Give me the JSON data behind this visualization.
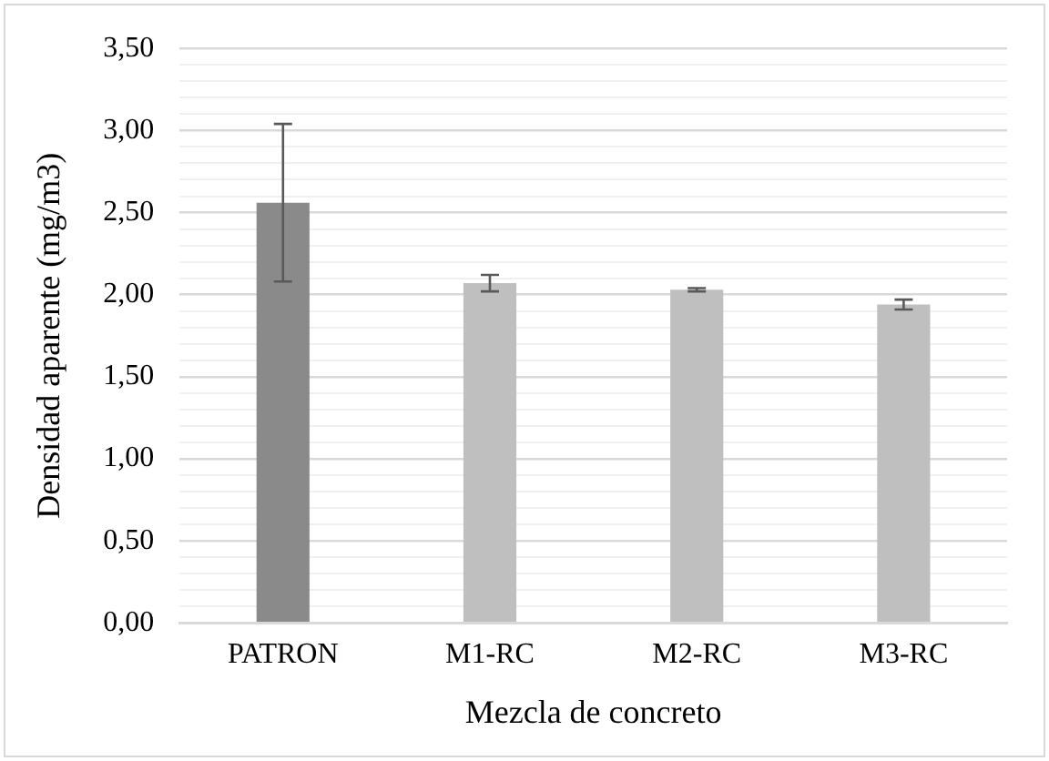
{
  "chart_data": {
    "type": "bar",
    "xlabel": "Mezcla de concreto",
    "ylabel": "Densidad aparente (mg/m3)",
    "categories": [
      "PATRON",
      "M1-RC",
      "M2-RC",
      "M3-RC"
    ],
    "values": [
      2.56,
      2.07,
      2.03,
      1.94
    ],
    "colors": [
      "#8a8a8a",
      "#bfbfbf",
      "#bfbfbf",
      "#bfbfbf"
    ],
    "errors": [
      0.48,
      0.05,
      0.01,
      0.03
    ],
    "ylim": [
      0,
      3.5
    ],
    "yticks": [
      {
        "value": 0,
        "label": "0,00"
      },
      {
        "value": 0.1,
        "label": null
      },
      {
        "value": 0.2,
        "label": null
      },
      {
        "value": 0.3,
        "label": null
      },
      {
        "value": 0.4,
        "label": null
      },
      {
        "value": 0.5,
        "label": "0,50"
      },
      {
        "value": 0.6,
        "label": null
      },
      {
        "value": 0.7,
        "label": null
      },
      {
        "value": 0.8,
        "label": null
      },
      {
        "value": 0.9,
        "label": null
      },
      {
        "value": 1,
        "label": "1,00"
      },
      {
        "value": 1.1,
        "label": null
      },
      {
        "value": 1.2,
        "label": null
      },
      {
        "value": 1.3,
        "label": null
      },
      {
        "value": 1.4,
        "label": null
      },
      {
        "value": 1.5,
        "label": "1,50"
      },
      {
        "value": 1.6,
        "label": null
      },
      {
        "value": 1.7,
        "label": null
      },
      {
        "value": 1.8,
        "label": null
      },
      {
        "value": 1.9,
        "label": null
      },
      {
        "value": 2,
        "label": "2,00"
      },
      {
        "value": 2.1,
        "label": null
      },
      {
        "value": 2.2,
        "label": null
      },
      {
        "value": 2.3,
        "label": null
      },
      {
        "value": 2.4,
        "label": null
      },
      {
        "value": 2.5,
        "label": "2,50"
      },
      {
        "value": 2.6,
        "label": null
      },
      {
        "value": 2.7,
        "label": null
      },
      {
        "value": 2.8,
        "label": null
      },
      {
        "value": 2.9,
        "label": null
      },
      {
        "value": 3,
        "label": "3,00"
      },
      {
        "value": 3.1,
        "label": null
      },
      {
        "value": 3.2,
        "label": null
      },
      {
        "value": 3.3,
        "label": null
      },
      {
        "value": 3.4,
        "label": null
      },
      {
        "value": 3.5,
        "label": "3,50"
      }
    ],
    "grid": "y"
  }
}
